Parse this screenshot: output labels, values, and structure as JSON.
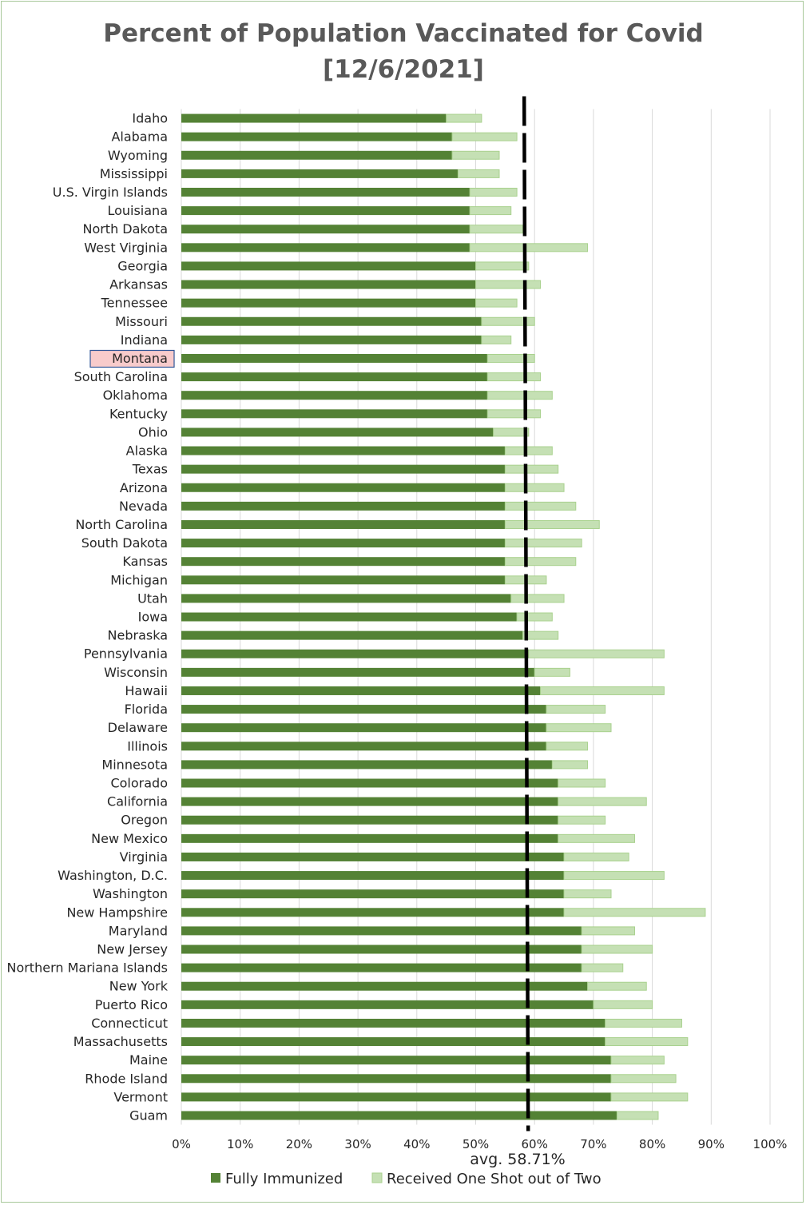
{
  "chart_data": {
    "type": "bar",
    "orientation": "horizontal",
    "stacked": true,
    "title": "Percent of Population Vaccinated for Covid",
    "subtitle": "[12/6/2021]",
    "xlim": [
      0,
      100
    ],
    "x_ticks": [
      "0%",
      "10%",
      "20%",
      "30%",
      "40%",
      "50%",
      "60%",
      "70%",
      "80%",
      "90%",
      "100%"
    ],
    "grid": "vertical",
    "legend_position": "bottom",
    "highlighted_category": "Montana",
    "average_label": "avg. 58.71%",
    "average_value": 58.71,
    "categories": [
      "Idaho",
      "Alabama",
      "Wyoming",
      "Mississippi",
      "U.S. Virgin Islands",
      "Louisiana",
      "North Dakota",
      "West Virginia",
      "Georgia",
      "Arkansas",
      "Tennessee",
      "Missouri",
      "Indiana",
      "Montana",
      "South Carolina",
      "Oklahoma",
      "Kentucky",
      "Ohio",
      "Alaska",
      "Texas",
      "Arizona",
      "Nevada",
      "North Carolina",
      "South Dakota",
      "Kansas",
      "Michigan",
      "Utah",
      "Iowa",
      "Nebraska",
      "Pennsylvania",
      "Wisconsin",
      "Hawaii",
      "Florida",
      "Delaware",
      "Illinois",
      "Minnesota",
      "Colorado",
      "California",
      "Oregon",
      "New Mexico",
      "Virginia",
      "Washington, D.C.",
      "Washington",
      "New Hampshire",
      "Maryland",
      "New Jersey",
      "Northern Mariana Islands",
      "New York",
      "Puerto Rico",
      "Connecticut",
      "Massachusetts",
      "Maine",
      "Rhode Island",
      "Vermont",
      "Guam"
    ],
    "series": [
      {
        "name": "Fully Immunized",
        "color": "#548235",
        "values": [
          45,
          46,
          46,
          47,
          49,
          49,
          49,
          49,
          50,
          50,
          50,
          51,
          51,
          52,
          52,
          52,
          52,
          53,
          55,
          55,
          55,
          55,
          55,
          55,
          55,
          55,
          56,
          57,
          58,
          59,
          60,
          61,
          62,
          62,
          62,
          63,
          64,
          64,
          64,
          64,
          65,
          65,
          65,
          65,
          68,
          68,
          68,
          69,
          70,
          72,
          72,
          73,
          73,
          73,
          74
        ]
      },
      {
        "name": "Received One Shot out of Two",
        "color": "#c5e0b4",
        "values": [
          6,
          11,
          8,
          7,
          8,
          7,
          9,
          20,
          9,
          11,
          7,
          9,
          5,
          8,
          9,
          11,
          9,
          6,
          8,
          9,
          10,
          12,
          16,
          13,
          12,
          7,
          9,
          6,
          6,
          23,
          6,
          21,
          10,
          11,
          7,
          6,
          8,
          15,
          8,
          13,
          11,
          17,
          8,
          24,
          9,
          12,
          7,
          10,
          10,
          13,
          14,
          9,
          11,
          13,
          7
        ]
      }
    ]
  }
}
